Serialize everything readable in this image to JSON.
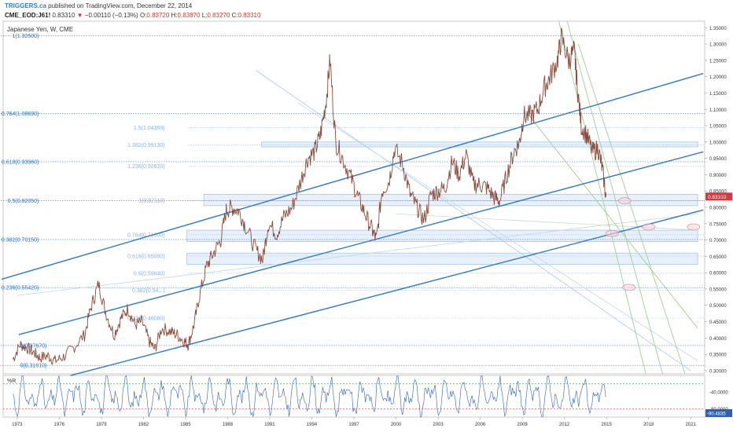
{
  "header": {
    "brand": "TRIGGERS.ca",
    "published": " published on TradingView.com, December 22, 2014",
    "symbol": "CME_EOD:J61!",
    "last": "0.83310",
    "change": "−0.00110 (−0.13%)",
    "o_label": "O:",
    "o_val": "0.83720",
    "h_label": "H:",
    "h_val": "0.83870",
    "l_label": "L:",
    "l_val": "0.83270",
    "c_label": "C:",
    "c_val": "0.83310"
  },
  "chart_data": [
    {
      "type": "line",
      "title": "Japanese Yen, W, CME",
      "x_ticks": [
        "1973",
        "1976",
        "1979",
        "1982",
        "1985",
        "1988",
        "1991",
        "1994",
        "1997",
        "2000",
        "2003",
        "2006",
        "2009",
        "2012",
        "2015",
        "2018",
        "2021"
      ],
      "x_range": [
        1972,
        2022
      ],
      "y_ticks": [
        "1.35000",
        "1.30000",
        "1.25000",
        "1.20000",
        "1.15000",
        "1.10000",
        "1.05000",
        "1.00000",
        "0.95000",
        "0.90000",
        "0.85000",
        "0.80000",
        "0.75000",
        "0.70000",
        "0.65000",
        "0.60000",
        "0.55000",
        "0.50000",
        "0.45000",
        "0.40000",
        "0.35000",
        "0.30000"
      ],
      "ylim": [
        0.29,
        1.37
      ],
      "last_price_label": "0.83310",
      "series": [
        {
          "values": [
            [
              1972.7,
              0.335
            ],
            [
              1973.2,
              0.38
            ],
            [
              1973.7,
              0.37
            ],
            [
              1974.2,
              0.355
            ],
            [
              1974.6,
              0.34
            ],
            [
              1975.2,
              0.345
            ],
            [
              1975.7,
              0.33
            ],
            [
              1976.3,
              0.342
            ],
            [
              1977.0,
              0.37
            ],
            [
              1977.8,
              0.41
            ],
            [
              1978.3,
              0.5
            ],
            [
              1978.8,
              0.565
            ],
            [
              1979.3,
              0.48
            ],
            [
              1979.9,
              0.41
            ],
            [
              1980.4,
              0.46
            ],
            [
              1980.9,
              0.49
            ],
            [
              1981.4,
              0.44
            ],
            [
              1981.9,
              0.45
            ],
            [
              1982.4,
              0.39
            ],
            [
              1982.8,
              0.365
            ],
            [
              1983.3,
              0.43
            ],
            [
              1983.9,
              0.42
            ],
            [
              1984.4,
              0.41
            ],
            [
              1984.9,
              0.39
            ],
            [
              1985.2,
              0.38
            ],
            [
              1985.6,
              0.44
            ],
            [
              1986.0,
              0.53
            ],
            [
              1986.5,
              0.62
            ],
            [
              1987.0,
              0.66
            ],
            [
              1987.5,
              0.7
            ],
            [
              1987.9,
              0.79
            ],
            [
              1988.3,
              0.8
            ],
            [
              1988.8,
              0.79
            ],
            [
              1989.3,
              0.74
            ],
            [
              1990.0,
              0.67
            ],
            [
              1990.5,
              0.64
            ],
            [
              1990.9,
              0.75
            ],
            [
              1991.5,
              0.72
            ],
            [
              1992.0,
              0.77
            ],
            [
              1992.6,
              0.8
            ],
            [
              1993.2,
              0.88
            ],
            [
              1993.7,
              0.95
            ],
            [
              1994.2,
              0.97
            ],
            [
              1994.6,
              1.02
            ],
            [
              1995.0,
              1.12
            ],
            [
              1995.3,
              1.25
            ],
            [
              1995.7,
              1.0
            ],
            [
              1996.2,
              0.95
            ],
            [
              1996.8,
              0.89
            ],
            [
              1997.3,
              0.83
            ],
            [
              1997.8,
              0.78
            ],
            [
              1998.3,
              0.73
            ],
            [
              1998.6,
              0.7
            ],
            [
              1999.0,
              0.85
            ],
            [
              1999.5,
              0.88
            ],
            [
              1999.9,
              0.98
            ],
            [
              2000.5,
              0.93
            ],
            [
              2001.0,
              0.84
            ],
            [
              2001.5,
              0.8
            ],
            [
              2002.0,
              0.76
            ],
            [
              2002.5,
              0.84
            ],
            [
              2003.0,
              0.85
            ],
            [
              2003.5,
              0.86
            ],
            [
              2004.0,
              0.94
            ],
            [
              2004.5,
              0.9
            ],
            [
              2005.0,
              0.96
            ],
            [
              2005.5,
              0.87
            ],
            [
              2006.0,
              0.87
            ],
            [
              2006.5,
              0.86
            ],
            [
              2007.0,
              0.83
            ],
            [
              2007.4,
              0.82
            ],
            [
              2007.9,
              0.9
            ],
            [
              2008.4,
              0.97
            ],
            [
              2008.8,
              1.0
            ],
            [
              2009.1,
              1.08
            ],
            [
              2009.6,
              1.08
            ],
            [
              2010.1,
              1.1
            ],
            [
              2010.6,
              1.17
            ],
            [
              2011.0,
              1.2
            ],
            [
              2011.5,
              1.25
            ],
            [
              2011.8,
              1.32
            ],
            [
              2012.3,
              1.25
            ],
            [
              2012.7,
              1.28
            ],
            [
              2012.9,
              1.18
            ],
            [
              2013.2,
              1.05
            ],
            [
              2013.6,
              1.02
            ],
            [
              2014.0,
              0.97
            ],
            [
              2014.4,
              0.98
            ],
            [
              2014.7,
              0.92
            ],
            [
              2014.97,
              0.833
            ]
          ]
        },
        {
          "values": []
        }
      ],
      "fib_left": [
        "1(1.32500)",
        "0.764(1.08690)",
        "0.618(0.93960)",
        "0.5(0.82050)",
        "0.382(0.70150)",
        "0.236(0.55420)",
        "0(0.37670)",
        "0(0.31610)"
      ],
      "fib_left_values": [
        1.325,
        1.0869,
        0.9396,
        0.8205,
        0.7015,
        0.5542,
        0.3767,
        0.3161
      ],
      "fib_right": [
        "1.5(1.04369)",
        "1.382(0.99130)",
        "1.236(0.92620)",
        "1(0.82110)",
        "0.764(0.71600)",
        "0.618(0.65090)",
        "0.5(0.59840)",
        "0.382(0.54...)",
        "0.236(0.46080)"
      ],
      "fib_right_values": [
        1.04369,
        0.9913,
        0.9262,
        0.8211,
        0.716,
        0.6509,
        0.5984,
        0.546,
        0.4608
      ]
    },
    {
      "type": "line",
      "title": "%R",
      "ylabel": "",
      "y_ticks": [
        "-40.0000",
        "-80.0000"
      ],
      "last_label": "-90.4835",
      "ylim": [
        -100,
        0
      ]
    }
  ]
}
